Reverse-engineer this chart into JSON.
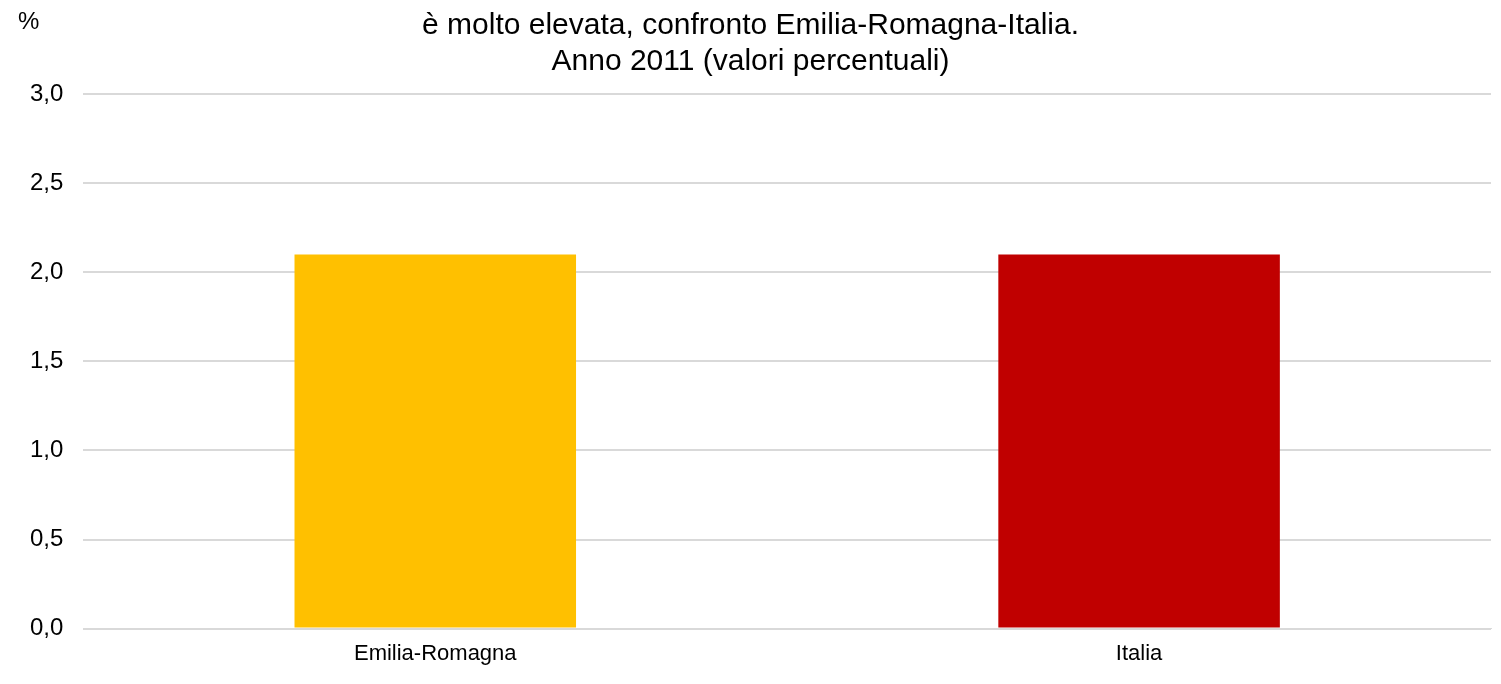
{
  "chart_data": {
    "type": "bar",
    "title": "è molto elevata, confronto Emilia-Romagna-Italia.\nAnno 2011 (valori percentuali)",
    "ylabel": "%",
    "categories": [
      "Emilia-Romagna",
      "Italia"
    ],
    "values": [
      2.1,
      2.1
    ],
    "colors": [
      "#ffc000",
      "#c00000"
    ],
    "ylim": [
      0,
      3
    ],
    "yticks": [
      {
        "value": 0,
        "label": "0,0"
      },
      {
        "value": 0.5,
        "label": "0,5"
      },
      {
        "value": 1,
        "label": "1,0"
      },
      {
        "value": 1.5,
        "label": "1,5"
      },
      {
        "value": 2,
        "label": "2,0"
      },
      {
        "value": 2.5,
        "label": "2,5"
      },
      {
        "value": 3,
        "label": "3,0"
      }
    ],
    "grid": "y",
    "legend": false
  }
}
